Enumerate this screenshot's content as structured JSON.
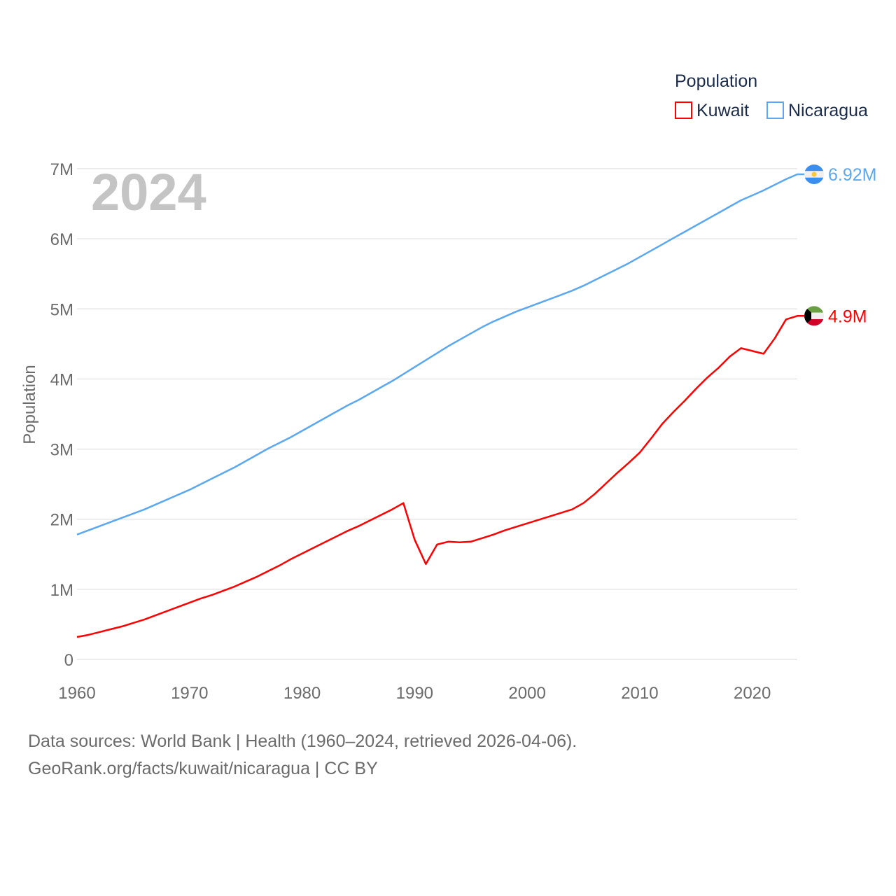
{
  "chart_data": {
    "type": "line",
    "title": "",
    "year_label": "2024",
    "xlabel": "",
    "ylabel": "Population",
    "xlim": [
      1960,
      2024
    ],
    "ylim": [
      0,
      7000000
    ],
    "x_ticks": [
      1960,
      1970,
      1980,
      1990,
      2000,
      2010,
      2020
    ],
    "y_ticks": [
      {
        "value": 0,
        "label": "0"
      },
      {
        "value": 1000000,
        "label": "1M"
      },
      {
        "value": 2000000,
        "label": "2M"
      },
      {
        "value": 3000000,
        "label": "3M"
      },
      {
        "value": 4000000,
        "label": "4M"
      },
      {
        "value": 5000000,
        "label": "5M"
      },
      {
        "value": 6000000,
        "label": "6M"
      },
      {
        "value": 7000000,
        "label": "7M"
      }
    ],
    "grid": true,
    "legend": {
      "title": "Population",
      "placement": "top-right"
    },
    "x_start": 1960,
    "series": [
      {
        "name": "Kuwait",
        "color": "#ff0000",
        "end_label": "4.9M",
        "flag": "kuwait-flag",
        "values_millions": [
          0.32,
          0.35,
          0.39,
          0.43,
          0.47,
          0.52,
          0.57,
          0.63,
          0.69,
          0.75,
          0.81,
          0.87,
          0.92,
          0.98,
          1.04,
          1.11,
          1.18,
          1.26,
          1.34,
          1.43,
          1.51,
          1.59,
          1.67,
          1.75,
          1.83,
          1.9,
          1.98,
          2.06,
          2.14,
          2.23,
          1.71,
          1.36,
          1.64,
          1.68,
          1.67,
          1.68,
          1.73,
          1.78,
          1.84,
          1.89,
          1.94,
          1.99,
          2.04,
          2.09,
          2.14,
          2.23,
          2.36,
          2.51,
          2.66,
          2.8,
          2.95,
          3.15,
          3.36,
          3.53,
          3.69,
          3.86,
          4.02,
          4.16,
          4.32,
          4.44,
          4.4,
          4.36,
          4.58,
          4.85,
          4.9
        ]
      },
      {
        "name": "Nicaragua",
        "color": "#5ba8f0",
        "end_label": "6.92M",
        "flag": "nicaragua-flag",
        "values_millions": [
          1.78,
          1.84,
          1.9,
          1.96,
          2.02,
          2.08,
          2.14,
          2.21,
          2.28,
          2.35,
          2.42,
          2.5,
          2.58,
          2.66,
          2.74,
          2.83,
          2.92,
          3.01,
          3.09,
          3.17,
          3.26,
          3.35,
          3.44,
          3.53,
          3.62,
          3.7,
          3.79,
          3.88,
          3.97,
          4.07,
          4.17,
          4.27,
          4.37,
          4.47,
          4.56,
          4.65,
          4.74,
          4.82,
          4.89,
          4.96,
          5.02,
          5.08,
          5.14,
          5.2,
          5.26,
          5.33,
          5.41,
          5.49,
          5.57,
          5.65,
          5.74,
          5.83,
          5.92,
          6.01,
          6.1,
          6.19,
          6.28,
          6.37,
          6.46,
          6.55,
          6.62,
          6.69,
          6.77,
          6.85,
          6.92
        ]
      }
    ]
  },
  "footer": {
    "line1": "Data sources: World Bank | Health (1960–2024, retrieved 2026-04-06).",
    "line2": "GeoRank.org/facts/kuwait/nicaragua | CC BY"
  }
}
